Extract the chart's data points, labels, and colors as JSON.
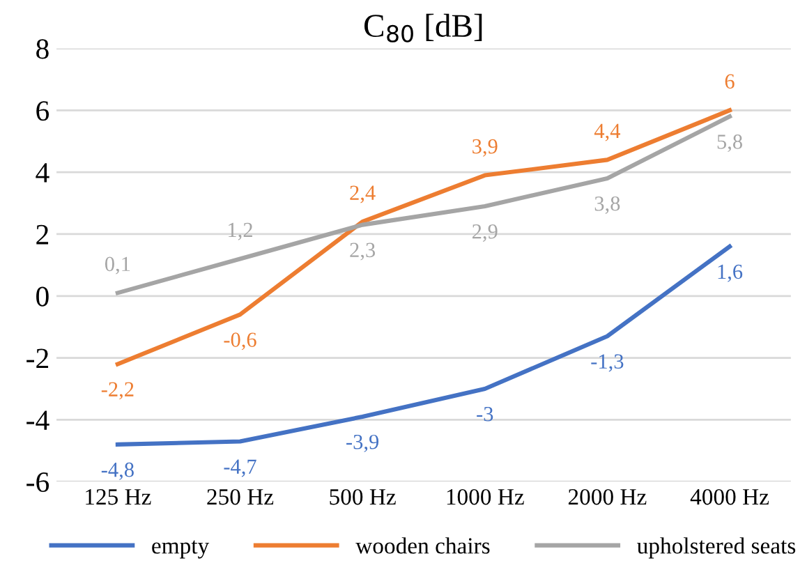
{
  "chart_data": {
    "type": "line",
    "title": "C$_{80}$ [dB]",
    "categories": [
      "125 Hz",
      "250 Hz",
      "500 Hz",
      "1000 Hz",
      "2000 Hz",
      "4000 Hz"
    ],
    "series": [
      {
        "name": "empty",
        "color": "#4472c4",
        "values": [
          -4.8,
          -4.7,
          -3.9,
          -3,
          -1.3,
          1.6
        ],
        "value_labels": [
          "-4,8",
          "-4,7",
          "-3,9",
          "-3",
          "-1,3",
          "1,6"
        ]
      },
      {
        "name": "wooden chairs",
        "color": "#ed7d31",
        "values": [
          -2.2,
          -0.6,
          2.4,
          3.9,
          4.4,
          6
        ],
        "value_labels": [
          "-2,2",
          "-0,6",
          "2,4",
          "3,9",
          "4,4",
          "6"
        ]
      },
      {
        "name": "upholstered seats",
        "color": "#a5a5a5",
        "values": [
          0.1,
          1.2,
          2.3,
          2.9,
          3.8,
          5.8
        ],
        "value_labels": [
          "0,1",
          "1,2",
          "2,3",
          "2,9",
          "3,8",
          "5,8"
        ]
      }
    ],
    "ylim": [
      -6,
      8
    ],
    "yticks": [
      -6,
      -4,
      -2,
      0,
      2,
      4,
      6,
      8
    ],
    "grid": "y",
    "legend": "bottom",
    "marker": "none",
    "line_style": "solid"
  }
}
